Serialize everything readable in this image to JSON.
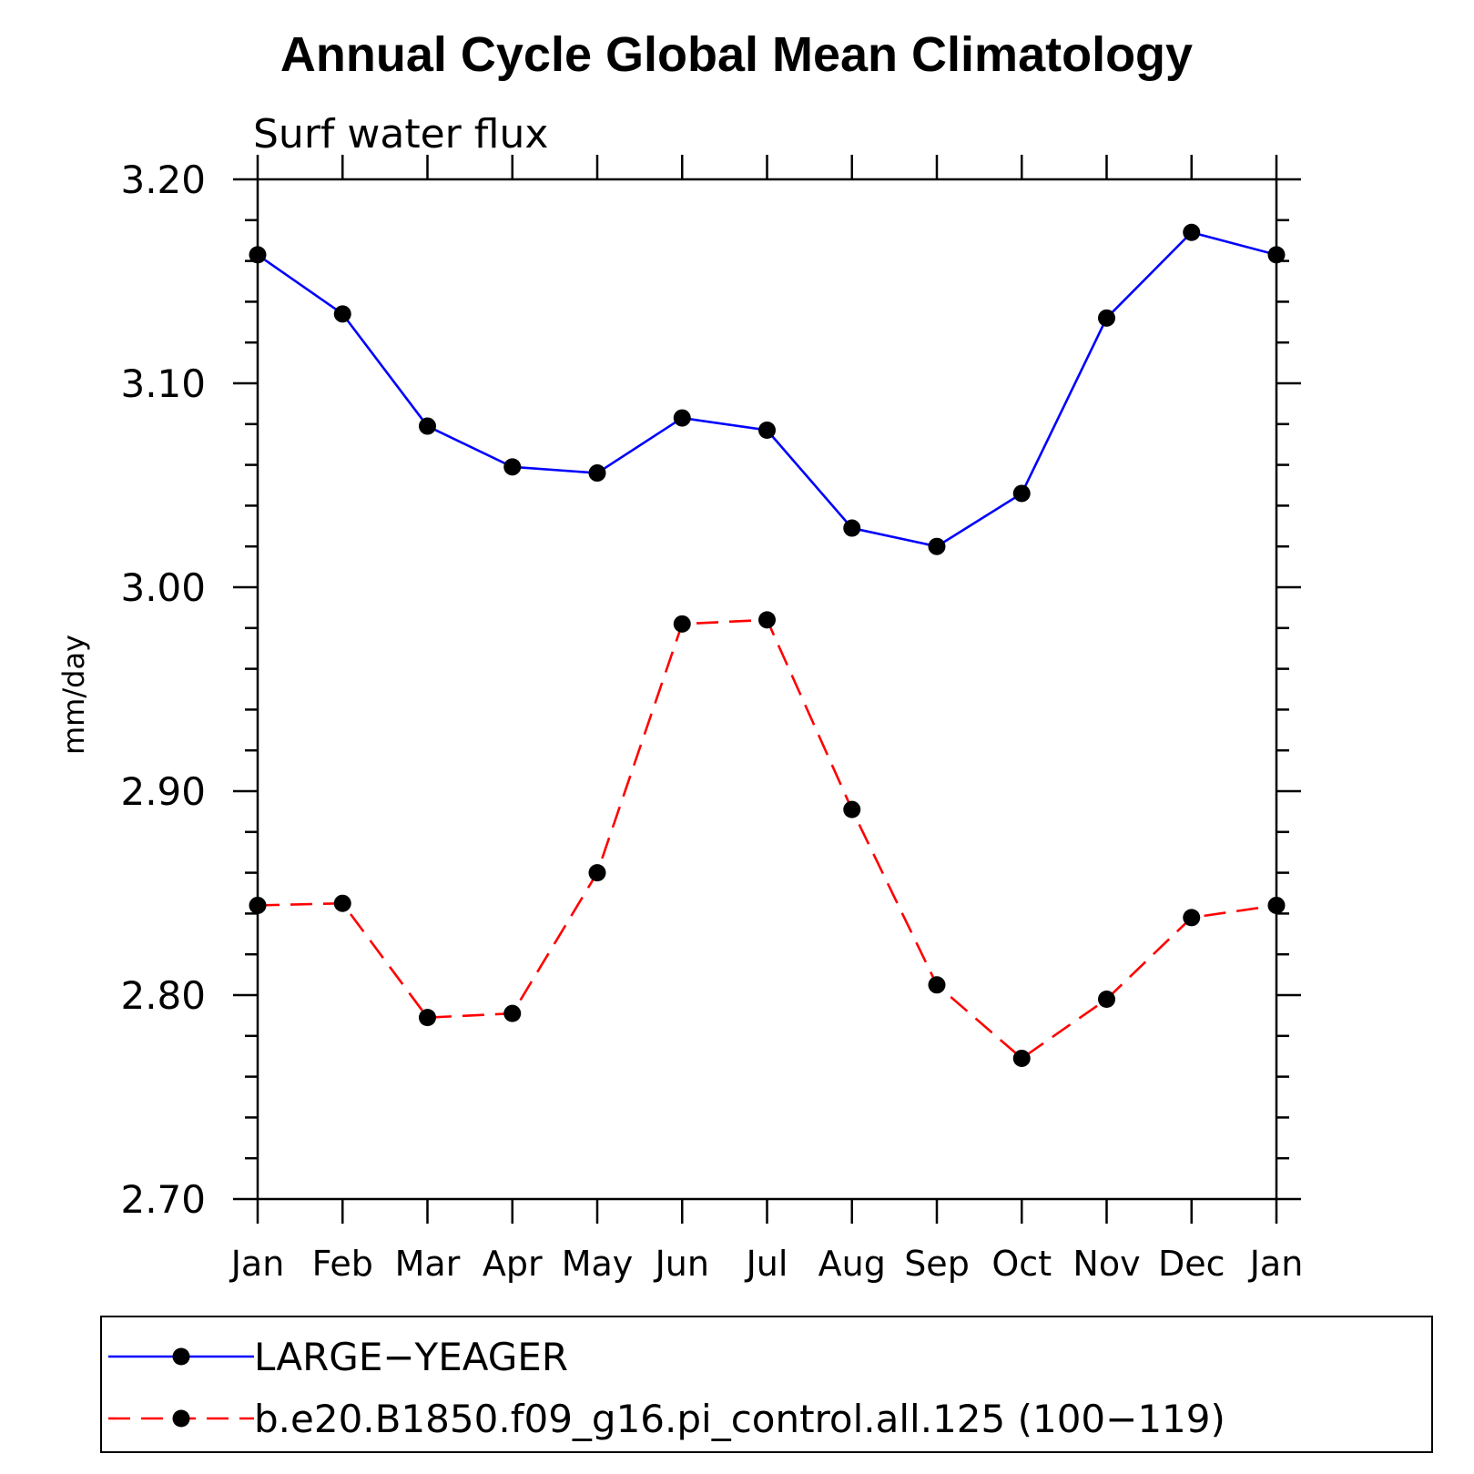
{
  "chart_data": {
    "type": "line",
    "title": "Annual Cycle Global Mean Climatology",
    "subtitle": "Surf water flux",
    "ylabel": "mm/day",
    "xlabel": "",
    "categories": [
      "Jan",
      "Feb",
      "Mar",
      "Apr",
      "May",
      "Jun",
      "Jul",
      "Aug",
      "Sep",
      "Oct",
      "Nov",
      "Dec",
      "Jan"
    ],
    "ylim": [
      2.7,
      3.2
    ],
    "yticks": [
      "2.70",
      "2.80",
      "2.90",
      "3.00",
      "3.10",
      "3.20"
    ],
    "series": [
      {
        "name": "LARGE−YEAGER",
        "color": "#0000ff",
        "dash": "solid",
        "marker": "filled-circle",
        "values": [
          3.163,
          3.134,
          3.079,
          3.059,
          3.056,
          3.083,
          3.077,
          3.029,
          3.02,
          3.046,
          3.132,
          3.174,
          3.163
        ]
      },
      {
        "name": "b.e20.B1850.f09_g16.pi_control.all.125 (100−119)",
        "color": "#ff0000",
        "dash": "dashed",
        "marker": "filled-circle",
        "values": [
          2.844,
          2.845,
          2.789,
          2.791,
          2.86,
          2.982,
          2.984,
          2.891,
          2.805,
          2.769,
          2.798,
          2.838,
          2.844
        ]
      }
    ],
    "legend_position": "bottom",
    "grid": false
  }
}
